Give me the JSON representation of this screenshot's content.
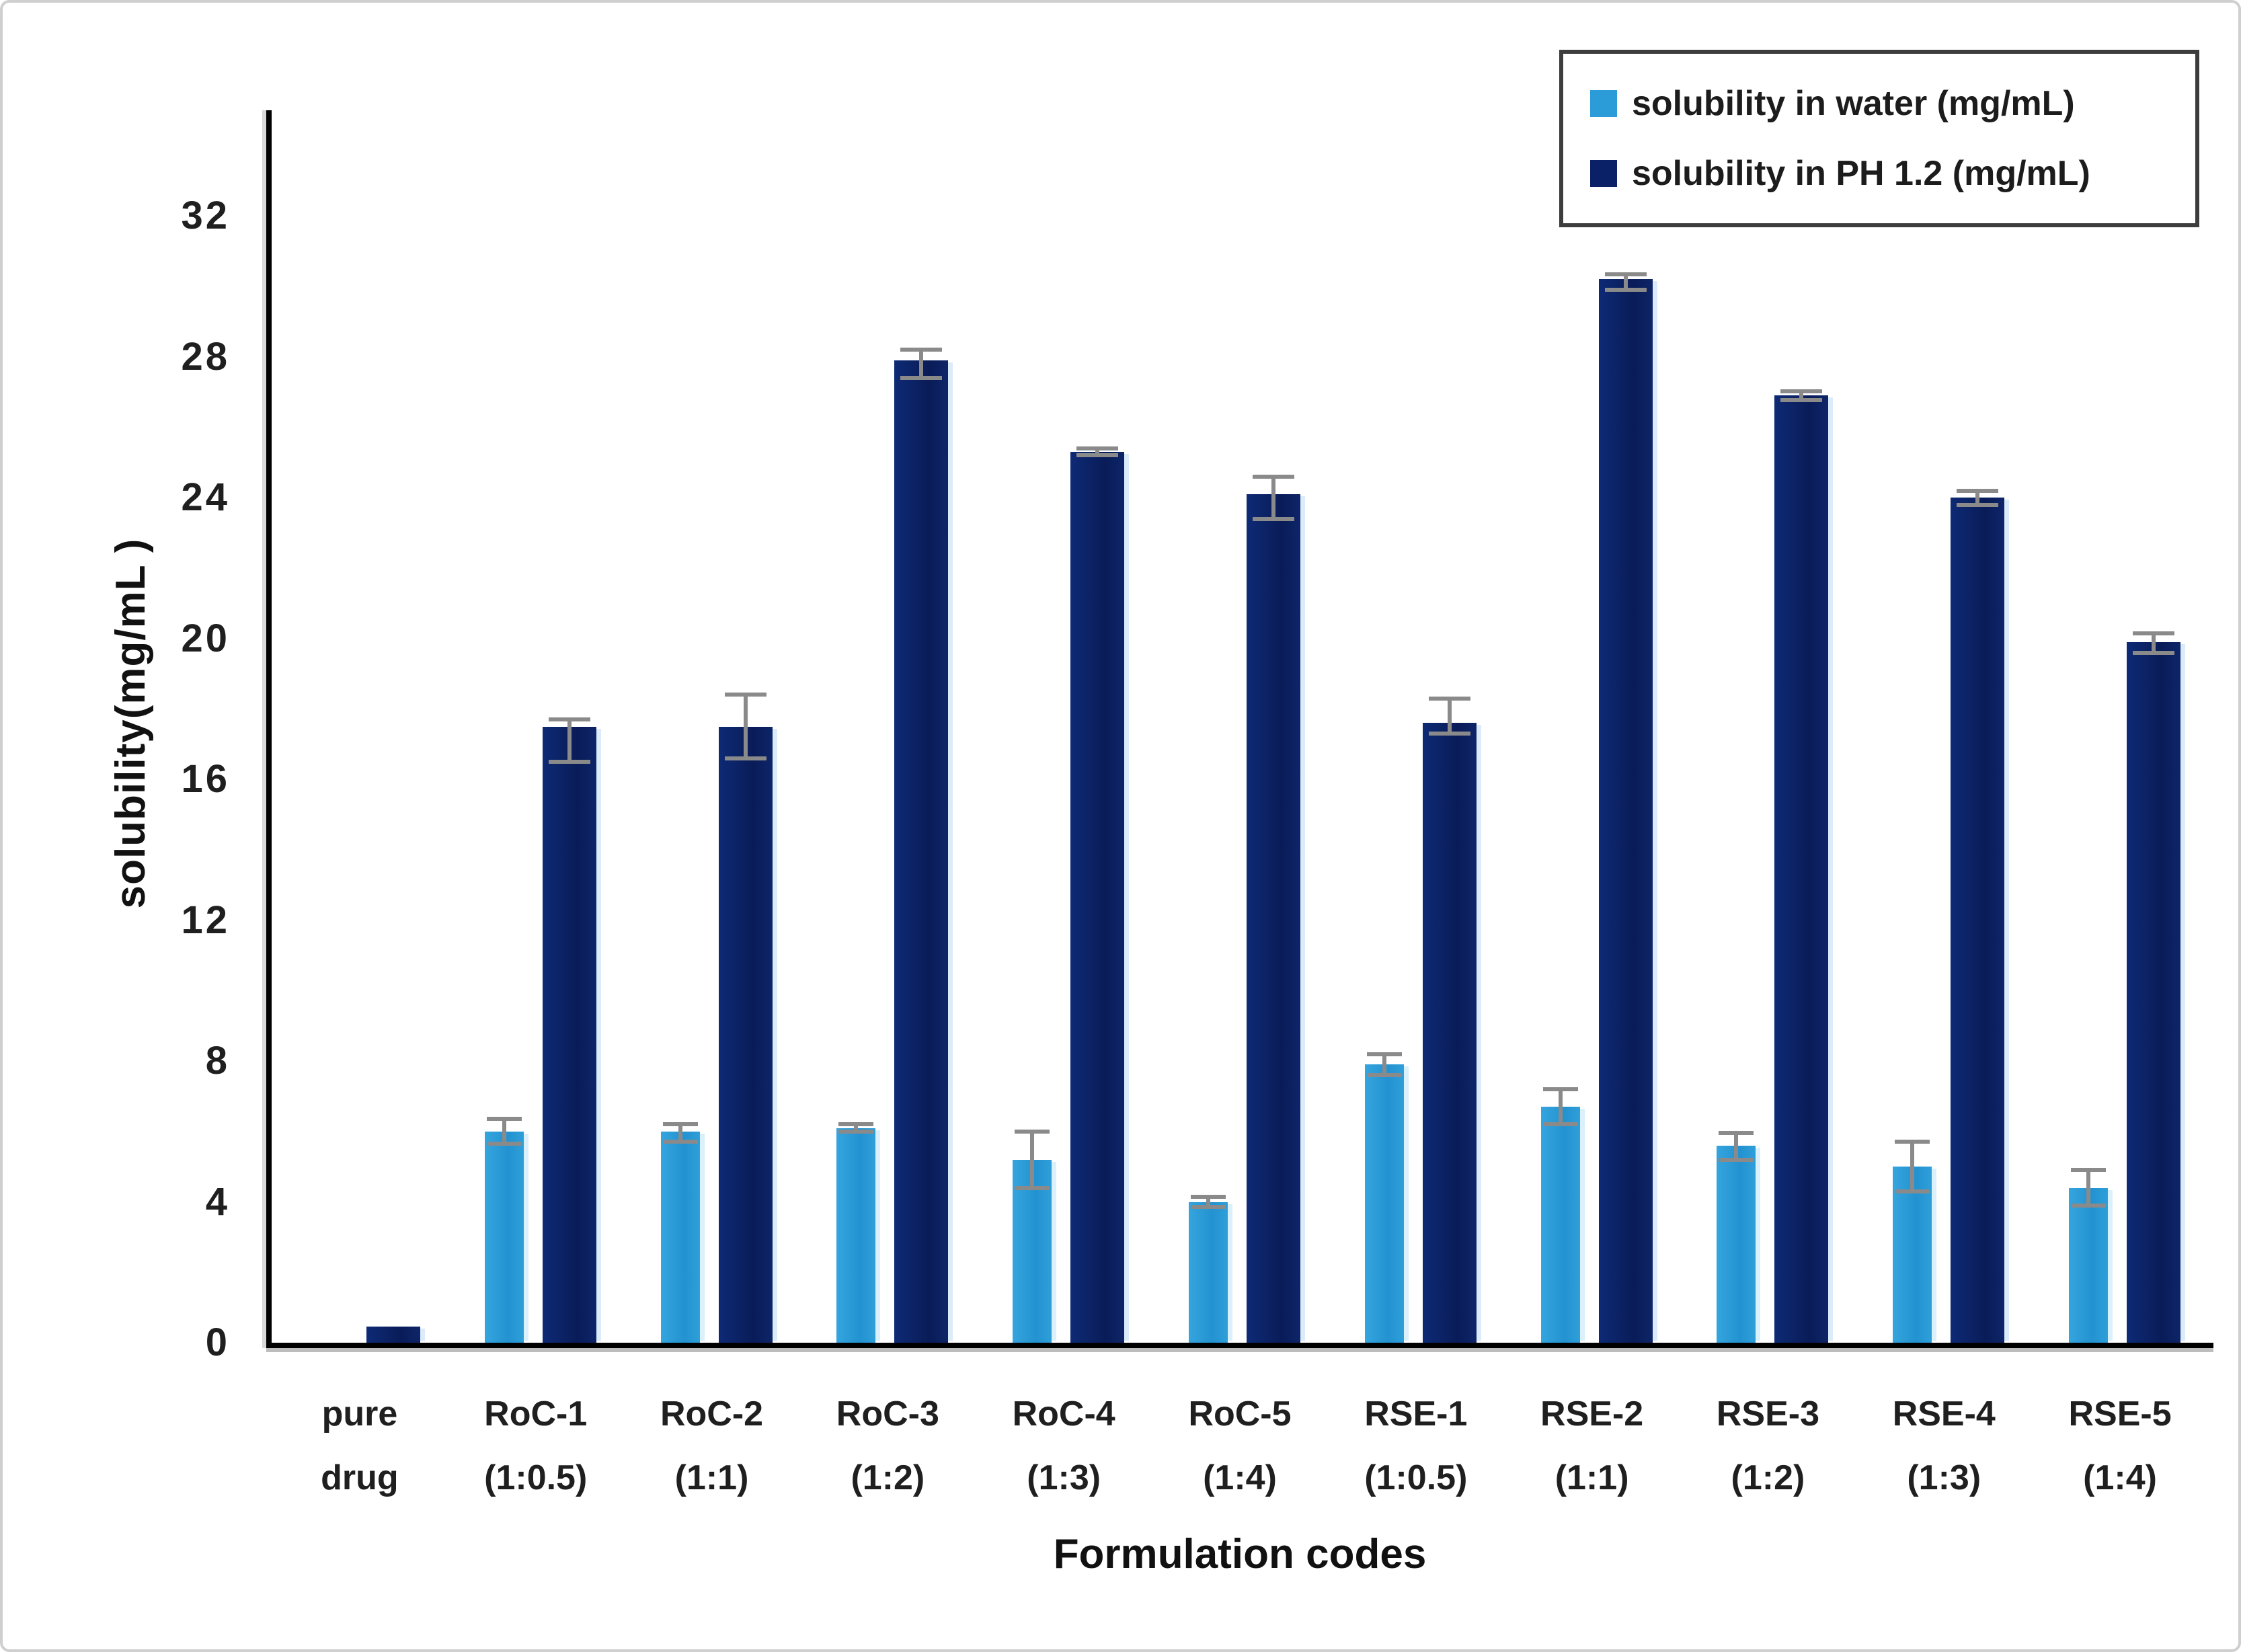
{
  "chart_data": {
    "type": "bar",
    "title": "",
    "xlabel": "Formulation codes",
    "ylabel": "solubility(mg/mL )",
    "ylim": [
      0,
      35
    ],
    "yticks": [
      0,
      4,
      8,
      12,
      16,
      20,
      24,
      28,
      32
    ],
    "grid": false,
    "legend_position": "top-right",
    "error_bar_color": "#8a8a8a",
    "categories": [
      [
        "pure",
        "drug"
      ],
      [
        "RoC-1",
        "(1:0.5)"
      ],
      [
        "RoC-2",
        "(1:1)"
      ],
      [
        "RoC-3",
        "(1:2)"
      ],
      [
        "RoC-4",
        "(1:3)"
      ],
      [
        "RoC-5",
        "(1:4)"
      ],
      [
        "RSE-1",
        "(1:0.5)"
      ],
      [
        "RSE-2",
        "(1:1)"
      ],
      [
        "RSE-3",
        "(1:2)"
      ],
      [
        "RSE-4",
        "(1:3)"
      ],
      [
        "RSE-5",
        "(1:4)"
      ]
    ],
    "series": [
      {
        "name": "solubility in water (mg/mL)",
        "color": "#2B9CD7",
        "values": [
          0,
          6.0,
          6.0,
          6.1,
          5.2,
          4.0,
          7.9,
          6.7,
          5.6,
          5.0,
          4.4
        ],
        "err_up": [
          0,
          0.35,
          0.2,
          0.1,
          0.8,
          0.15,
          0.3,
          0.5,
          0.35,
          0.7,
          0.5
        ],
        "err_down": [
          0,
          0.35,
          0.3,
          0.1,
          0.8,
          0.15,
          0.3,
          0.5,
          0.4,
          0.7,
          0.5
        ]
      },
      {
        "name": "solubility in PH 1.2 (mg/mL)",
        "color": "#0B2167",
        "values": [
          0.45,
          17.5,
          17.5,
          27.9,
          25.3,
          24.1,
          17.6,
          30.2,
          26.9,
          24.0,
          19.9
        ],
        "err_up": [
          0,
          0.2,
          0.9,
          0.3,
          0.1,
          0.5,
          0.7,
          0.15,
          0.12,
          0.2,
          0.25
        ],
        "err_down": [
          0,
          1.0,
          0.9,
          0.5,
          0.1,
          0.7,
          0.3,
          0.3,
          0.12,
          0.2,
          0.3
        ]
      }
    ]
  },
  "legend": {
    "items": [
      {
        "label": "solubility in water (mg/mL)",
        "color": "#2B9CD7"
      },
      {
        "label": "solubility in PH 1.2 (mg/mL)",
        "color": "#0B2167"
      }
    ]
  }
}
